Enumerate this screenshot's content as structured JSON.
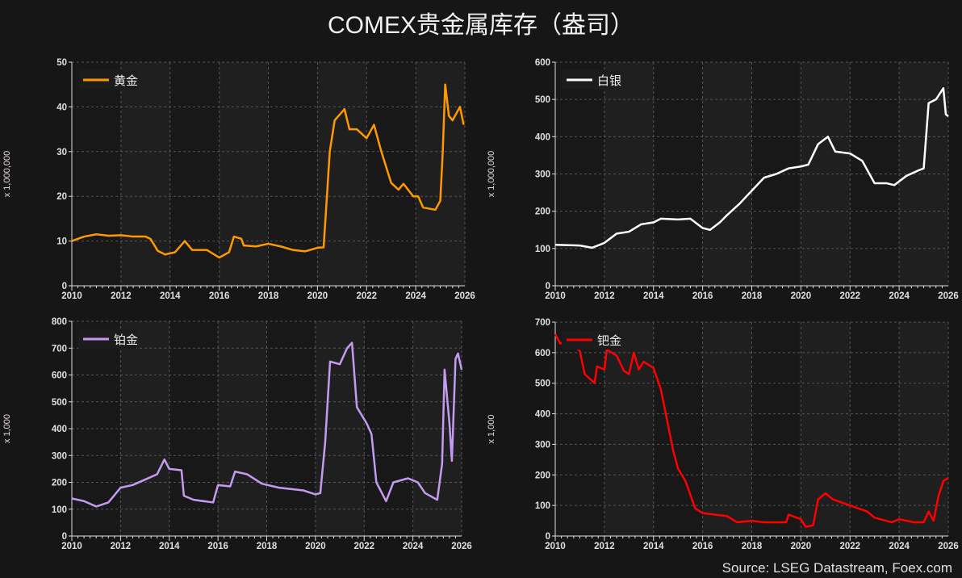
{
  "title": "COMEX贵金属库存（盎司）",
  "source": "Source: LSEG Datastream, Foex.com",
  "chart_data": [
    {
      "type": "line",
      "legend": "黄金",
      "ylabel": "x 1,000,000",
      "color": "#ff9900",
      "xlim": [
        2010,
        2026
      ],
      "ylim": [
        0,
        50
      ],
      "yticks": [
        0,
        10,
        20,
        30,
        40,
        50
      ],
      "xticks": [
        2010,
        2012,
        2014,
        2016,
        2018,
        2020,
        2022,
        2024,
        2026
      ],
      "grid": true,
      "legend_position": "top-left",
      "series": [
        [
          2010,
          10
        ],
        [
          2010.5,
          11
        ],
        [
          2011,
          11.5
        ],
        [
          2011.5,
          11.2
        ],
        [
          2012,
          11.3
        ],
        [
          2012.5,
          11
        ],
        [
          2013,
          11
        ],
        [
          2013.2,
          10.5
        ],
        [
          2013.5,
          7.8
        ],
        [
          2013.8,
          7
        ],
        [
          2014.2,
          7.5
        ],
        [
          2014.6,
          10
        ],
        [
          2014.9,
          8
        ],
        [
          2015.5,
          8
        ],
        [
          2016,
          6.3
        ],
        [
          2016.4,
          7.5
        ],
        [
          2016.6,
          11
        ],
        [
          2016.9,
          10.5
        ],
        [
          2017,
          9
        ],
        [
          2017.5,
          8.8
        ],
        [
          2018,
          9.4
        ],
        [
          2018.5,
          8.8
        ],
        [
          2019,
          8
        ],
        [
          2019.5,
          7.7
        ],
        [
          2020,
          8.5
        ],
        [
          2020.25,
          8.6
        ],
        [
          2020.35,
          17
        ],
        [
          2020.5,
          30
        ],
        [
          2020.7,
          37
        ],
        [
          2021.1,
          39.5
        ],
        [
          2021.3,
          35
        ],
        [
          2021.6,
          35
        ],
        [
          2022,
          33
        ],
        [
          2022.3,
          36
        ],
        [
          2022.6,
          30
        ],
        [
          2023,
          23
        ],
        [
          2023.3,
          21.5
        ],
        [
          2023.5,
          22.8
        ],
        [
          2023.9,
          20
        ],
        [
          2024.1,
          20
        ],
        [
          2024.3,
          17.5
        ],
        [
          2024.8,
          17
        ],
        [
          2025,
          19
        ],
        [
          2025.1,
          30
        ],
        [
          2025.2,
          45
        ],
        [
          2025.35,
          38
        ],
        [
          2025.5,
          37
        ],
        [
          2025.7,
          39
        ],
        [
          2025.8,
          40
        ],
        [
          2025.95,
          36
        ]
      ]
    },
    {
      "type": "line",
      "legend": "白银",
      "ylabel": "x 1,000,000",
      "color": "#ffffff",
      "xlim": [
        2010,
        2026
      ],
      "ylim": [
        0,
        600
      ],
      "yticks": [
        0,
        100,
        200,
        300,
        400,
        500,
        600
      ],
      "xticks": [
        2010,
        2012,
        2014,
        2016,
        2018,
        2020,
        2022,
        2024,
        2026
      ],
      "grid": true,
      "legend_position": "top-left",
      "series": [
        [
          2010,
          110
        ],
        [
          2011,
          108
        ],
        [
          2011.5,
          102
        ],
        [
          2012,
          115
        ],
        [
          2012.5,
          140
        ],
        [
          2013,
          145
        ],
        [
          2013.5,
          165
        ],
        [
          2014,
          170
        ],
        [
          2014.3,
          180
        ],
        [
          2015,
          178
        ],
        [
          2015.5,
          180
        ],
        [
          2016,
          155
        ],
        [
          2016.3,
          150
        ],
        [
          2016.7,
          170
        ],
        [
          2017,
          190
        ],
        [
          2017.5,
          220
        ],
        [
          2018,
          255
        ],
        [
          2018.5,
          290
        ],
        [
          2019,
          300
        ],
        [
          2019.5,
          315
        ],
        [
          2020,
          320
        ],
        [
          2020.3,
          325
        ],
        [
          2020.7,
          380
        ],
        [
          2021.1,
          400
        ],
        [
          2021.4,
          360
        ],
        [
          2022,
          355
        ],
        [
          2022.5,
          335
        ],
        [
          2023,
          275
        ],
        [
          2023.5,
          275
        ],
        [
          2023.8,
          270
        ],
        [
          2024.3,
          295
        ],
        [
          2024.8,
          310
        ],
        [
          2025,
          315
        ],
        [
          2025.2,
          490
        ],
        [
          2025.5,
          500
        ],
        [
          2025.8,
          530
        ],
        [
          2025.9,
          460
        ],
        [
          2026,
          455
        ]
      ]
    },
    {
      "type": "line",
      "legend": "铂金",
      "ylabel": "x 1,000",
      "color": "#c39bf0",
      "xlim": [
        2010,
        2026
      ],
      "ylim": [
        0,
        800
      ],
      "yticks": [
        0,
        100,
        200,
        300,
        400,
        500,
        600,
        700,
        800
      ],
      "xticks": [
        2010,
        2012,
        2014,
        2016,
        2018,
        2020,
        2022,
        2024,
        2026
      ],
      "grid": true,
      "legend_position": "top-left",
      "series": [
        [
          2010,
          140
        ],
        [
          2010.5,
          130
        ],
        [
          2011,
          110
        ],
        [
          2011.5,
          125
        ],
        [
          2012,
          180
        ],
        [
          2012.5,
          190
        ],
        [
          2013,
          210
        ],
        [
          2013.5,
          230
        ],
        [
          2013.8,
          285
        ],
        [
          2014,
          250
        ],
        [
          2014.5,
          245
        ],
        [
          2014.6,
          150
        ],
        [
          2015,
          135
        ],
        [
          2015.8,
          125
        ],
        [
          2016,
          190
        ],
        [
          2016.5,
          185
        ],
        [
          2016.7,
          240
        ],
        [
          2017.2,
          230
        ],
        [
          2017.8,
          195
        ],
        [
          2018.5,
          180
        ],
        [
          2019.5,
          170
        ],
        [
          2020,
          155
        ],
        [
          2020.2,
          160
        ],
        [
          2020.4,
          350
        ],
        [
          2020.6,
          650
        ],
        [
          2021,
          640
        ],
        [
          2021.3,
          700
        ],
        [
          2021.5,
          720
        ],
        [
          2021.7,
          480
        ],
        [
          2022.1,
          420
        ],
        [
          2022.3,
          380
        ],
        [
          2022.5,
          200
        ],
        [
          2022.9,
          130
        ],
        [
          2023.2,
          200
        ],
        [
          2023.8,
          215
        ],
        [
          2024.2,
          200
        ],
        [
          2024.5,
          160
        ],
        [
          2025,
          135
        ],
        [
          2025.2,
          270
        ],
        [
          2025.3,
          620
        ],
        [
          2025.5,
          420
        ],
        [
          2025.6,
          280
        ],
        [
          2025.75,
          660
        ],
        [
          2025.85,
          680
        ],
        [
          2026,
          620
        ]
      ]
    },
    {
      "type": "line",
      "legend": "钯金",
      "ylabel": "x 1,000",
      "color": "#ff0000",
      "xlim": [
        2010,
        2026
      ],
      "ylim": [
        0,
        700
      ],
      "yticks": [
        0,
        100,
        200,
        300,
        400,
        500,
        600,
        700
      ],
      "xticks": [
        2010,
        2012,
        2014,
        2016,
        2018,
        2020,
        2022,
        2024,
        2026
      ],
      "grid": true,
      "legend_position": "top-left",
      "series": [
        [
          2010,
          660
        ],
        [
          2010.2,
          630
        ],
        [
          2010.6,
          640
        ],
        [
          2011,
          605
        ],
        [
          2011.2,
          530
        ],
        [
          2011.6,
          500
        ],
        [
          2011.7,
          555
        ],
        [
          2012,
          545
        ],
        [
          2012.1,
          610
        ],
        [
          2012.5,
          590
        ],
        [
          2012.8,
          540
        ],
        [
          2013,
          530
        ],
        [
          2013.2,
          600
        ],
        [
          2013.4,
          545
        ],
        [
          2013.6,
          570
        ],
        [
          2014,
          550
        ],
        [
          2014.3,
          480
        ],
        [
          2014.5,
          400
        ],
        [
          2014.8,
          280
        ],
        [
          2015,
          220
        ],
        [
          2015.3,
          180
        ],
        [
          2015.7,
          90
        ],
        [
          2016,
          75
        ],
        [
          2016.5,
          70
        ],
        [
          2017,
          65
        ],
        [
          2017.4,
          45
        ],
        [
          2018,
          50
        ],
        [
          2018.5,
          45
        ],
        [
          2019.4,
          45
        ],
        [
          2019.5,
          70
        ],
        [
          2020,
          55
        ],
        [
          2020.2,
          30
        ],
        [
          2020.5,
          35
        ],
        [
          2020.7,
          120
        ],
        [
          2021,
          140
        ],
        [
          2021.3,
          120
        ],
        [
          2022,
          100
        ],
        [
          2022.7,
          80
        ],
        [
          2023,
          60
        ],
        [
          2023.7,
          45
        ],
        [
          2024,
          55
        ],
        [
          2024.6,
          45
        ],
        [
          2025,
          45
        ],
        [
          2025.2,
          80
        ],
        [
          2025.4,
          50
        ],
        [
          2025.6,
          130
        ],
        [
          2025.8,
          180
        ],
        [
          2026,
          190
        ]
      ]
    }
  ]
}
